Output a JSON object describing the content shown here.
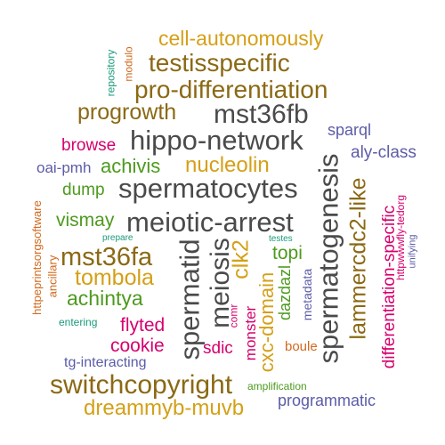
{
  "palette": {
    "gold": "#d4a017",
    "brown": "#8b6914",
    "gray": "#4a4a4a",
    "pink": "#d6006e",
    "purple": "#5c5ca8",
    "green": "#4d9a1e",
    "orange": "#d2691e",
    "teal": "#1a9a7a"
  },
  "words": [
    {
      "text": "cell-autonomously"
    },
    {
      "text": "testisspecific"
    },
    {
      "text": "pro-differentiation"
    },
    {
      "text": "progrowth"
    },
    {
      "text": "mst36fb"
    },
    {
      "text": "hippo-network"
    },
    {
      "text": "browse"
    },
    {
      "text": "sparql"
    },
    {
      "text": "aly-class"
    },
    {
      "text": "oai-pmh"
    },
    {
      "text": "achivis"
    },
    {
      "text": "nucleolin"
    },
    {
      "text": "dump"
    },
    {
      "text": "spermatocytes"
    },
    {
      "text": "vismay"
    },
    {
      "text": "meiotic-arrest"
    },
    {
      "text": "mst36fa"
    },
    {
      "text": "tombola"
    },
    {
      "text": "achintya"
    },
    {
      "text": "flyted"
    },
    {
      "text": "cookie"
    },
    {
      "text": "sdic"
    },
    {
      "text": "tg-interacting"
    },
    {
      "text": "switchcopyright"
    },
    {
      "text": "amplification"
    },
    {
      "text": "programmatic"
    },
    {
      "text": "dreammyb-muvb"
    },
    {
      "text": "topi"
    },
    {
      "text": "boule"
    },
    {
      "text": "entering"
    },
    {
      "text": "prepare"
    },
    {
      "text": "testes"
    },
    {
      "text": "repository"
    },
    {
      "text": "modulo"
    },
    {
      "text": "spermatid"
    },
    {
      "text": "meiosis"
    },
    {
      "text": "clk2"
    },
    {
      "text": "cxc-domain"
    },
    {
      "text": "spermatogenesis"
    },
    {
      "text": "lammercdc2-like"
    },
    {
      "text": "differentiation-specific"
    },
    {
      "text": "httpwwwfly-tedorg"
    },
    {
      "text": "unifying"
    },
    {
      "text": "httpeprintsorgsoftware"
    },
    {
      "text": "ancillary"
    },
    {
      "text": "comr"
    },
    {
      "text": "monster"
    },
    {
      "text": "dazdazl"
    },
    {
      "text": "metadata"
    }
  ]
}
